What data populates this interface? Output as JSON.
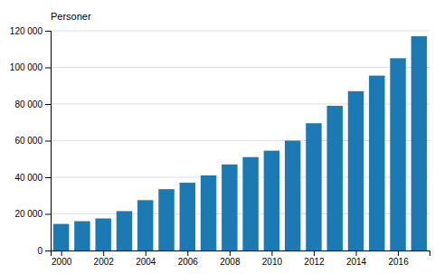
{
  "chart_data": {
    "type": "bar",
    "ylabel": "Personer",
    "x": [
      2000,
      2001,
      2002,
      2003,
      2004,
      2005,
      2006,
      2007,
      2008,
      2009,
      2010,
      2011,
      2012,
      2013,
      2014,
      2015,
      2016,
      2017
    ],
    "values": [
      14500,
      16000,
      17500,
      21500,
      27500,
      33500,
      37000,
      41000,
      47000,
      51000,
      54500,
      60000,
      69500,
      79000,
      87000,
      95500,
      105000,
      117000
    ],
    "color": "#1b7ab3",
    "xlim": [
      1999.5,
      2017.5
    ],
    "xticks": [
      2000,
      2002,
      2004,
      2006,
      2008,
      2010,
      2012,
      2014,
      2016
    ],
    "ylim": [
      0,
      120000
    ],
    "yticks": [
      0,
      {
        "value": 20000,
        "label": "20 000"
      },
      {
        "value": 40000,
        "label": "40 000"
      },
      {
        "value": 60000,
        "label": "60 000"
      },
      {
        "value": 80000,
        "label": "80 000"
      },
      {
        "value": 100000,
        "label": "100 000"
      },
      {
        "value": 120000,
        "label": "120 000"
      }
    ],
    "grid": true
  }
}
